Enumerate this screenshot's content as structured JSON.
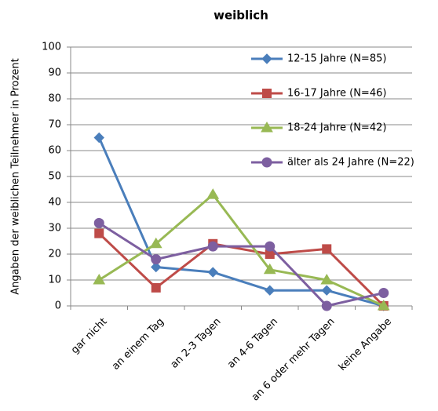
{
  "chart_data": {
    "type": "line",
    "title": "weiblich",
    "y_label": "Angaben der weiblichen Teilnehmer in Prozent",
    "categories": [
      "gar nicht",
      "an einem Tag",
      "an 2-3 Tagen",
      "an 4-6 Tagen",
      "an 6 oder mehr Tagen",
      "keine Angabe"
    ],
    "series": [
      {
        "name": "12-15 Jahre (N=85)",
        "color": "#4a7ebb",
        "marker": "diamond",
        "values": [
          65,
          15,
          13,
          6,
          6,
          0
        ]
      },
      {
        "name": "16-17 Jahre (N=46)",
        "color": "#be4b48",
        "marker": "square",
        "values": [
          28,
          7,
          24,
          20,
          22,
          0
        ]
      },
      {
        "name": "18-24 Jahre (N=42)",
        "color": "#98b954",
        "marker": "triangle",
        "values": [
          10,
          24,
          43,
          14,
          10,
          0
        ]
      },
      {
        "name": "älter als 24 Jahre (N=22)",
        "color": "#7d5fa0",
        "marker": "circle",
        "values": [
          32,
          18,
          23,
          23,
          0,
          5
        ]
      }
    ],
    "ylim": [
      0,
      100
    ],
    "yticks": [
      0,
      10,
      20,
      30,
      40,
      50,
      60,
      70,
      80,
      90,
      100
    ],
    "grid": true,
    "legend": "top-right"
  }
}
